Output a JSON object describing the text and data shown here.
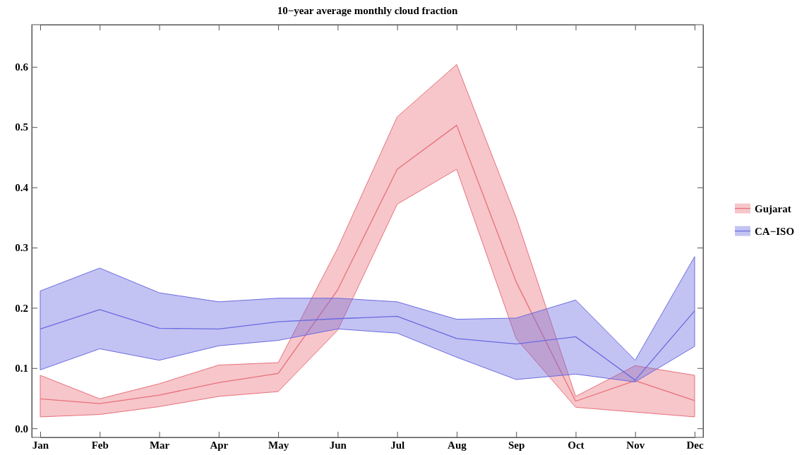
{
  "chart_data": {
    "type": "line",
    "title": "10−year average monthly cloud fraction",
    "categories": [
      "Jan",
      "Feb",
      "Mar",
      "Apr",
      "May",
      "Jun",
      "Jul",
      "Aug",
      "Sep",
      "Oct",
      "Nov",
      "Dec"
    ],
    "series": [
      {
        "name": "Gujarat",
        "color": "#e8707a",
        "values": [
          0.049,
          0.041,
          0.055,
          0.076,
          0.091,
          0.23,
          0.43,
          0.503,
          0.243,
          0.045,
          0.079,
          0.046
        ],
        "lower": [
          0.019,
          0.023,
          0.036,
          0.053,
          0.061,
          0.163,
          0.372,
          0.43,
          0.149,
          0.035,
          0.027,
          0.019
        ],
        "upper": [
          0.088,
          0.049,
          0.074,
          0.105,
          0.109,
          0.299,
          0.517,
          0.604,
          0.35,
          0.053,
          0.104,
          0.088
        ]
      },
      {
        "name": "CA−ISO",
        "color": "#6a6ae0",
        "values": [
          0.165,
          0.197,
          0.166,
          0.165,
          0.177,
          0.182,
          0.186,
          0.149,
          0.14,
          0.152,
          0.08,
          0.195
        ],
        "lower": [
          0.097,
          0.132,
          0.113,
          0.137,
          0.146,
          0.165,
          0.158,
          0.118,
          0.081,
          0.09,
          0.077,
          0.136
        ],
        "upper": [
          0.228,
          0.266,
          0.225,
          0.21,
          0.216,
          0.216,
          0.21,
          0.181,
          0.183,
          0.213,
          0.113,
          0.285
        ]
      }
    ],
    "ylim": [
      -0.015,
      0.67
    ],
    "yticks": [
      {
        "value": 0,
        "label": "0.0"
      },
      0.1,
      0.2,
      0.3,
      0.4,
      0.5,
      0.6
    ],
    "legend": "right",
    "grid": false,
    "marker": "none",
    "line_style": "solid"
  }
}
